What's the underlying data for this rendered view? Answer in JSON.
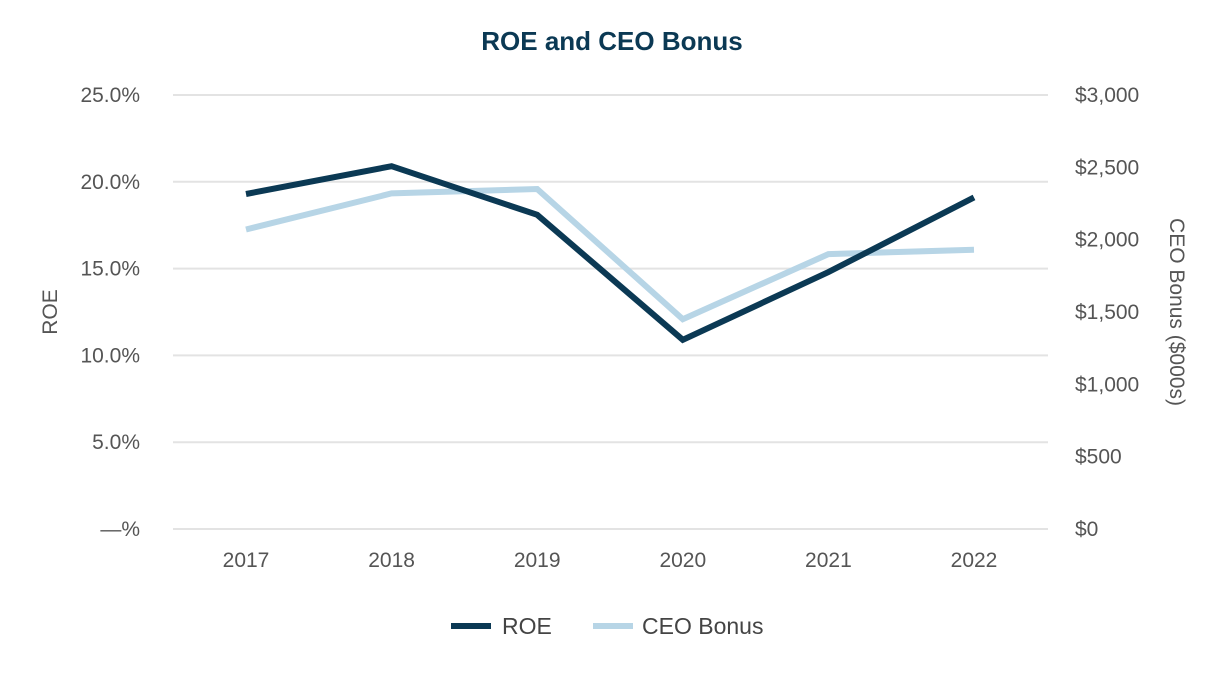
{
  "chart_data": {
    "type": "line",
    "title": "ROE and CEO Bonus",
    "x": [
      "2017",
      "2018",
      "2019",
      "2020",
      "2021",
      "2022"
    ],
    "series": [
      {
        "name": "ROE",
        "axis": "left",
        "color": "#0b3954",
        "values": [
          0.193,
          0.209,
          0.181,
          0.109,
          0.148,
          0.191
        ]
      },
      {
        "name": "CEO Bonus",
        "axis": "right",
        "color": "#b7d5e6",
        "values": [
          2070,
          2320,
          2350,
          1450,
          1900,
          1930
        ]
      }
    ],
    "y_left": {
      "label": "ROE",
      "min": 0,
      "max": 0.25,
      "ticks": [
        0,
        0.05,
        0.1,
        0.15,
        0.2,
        0.25
      ],
      "tick_labels": [
        "—%",
        "5.0%",
        "10.0%",
        "15.0%",
        "20.0%",
        "25.0%"
      ]
    },
    "y_right": {
      "label": "CEO Bonus ($000s)",
      "min": 0,
      "max": 3000,
      "ticks": [
        0,
        500,
        1000,
        1500,
        2000,
        2500,
        3000
      ],
      "tick_labels": [
        "$0",
        "$500",
        "$1,000",
        "$1,500",
        "$2,000",
        "$2,500",
        "$3,000"
      ]
    },
    "grid": true,
    "legend": {
      "position": "bottom-center",
      "entries": [
        "ROE",
        "CEO Bonus"
      ]
    }
  }
}
